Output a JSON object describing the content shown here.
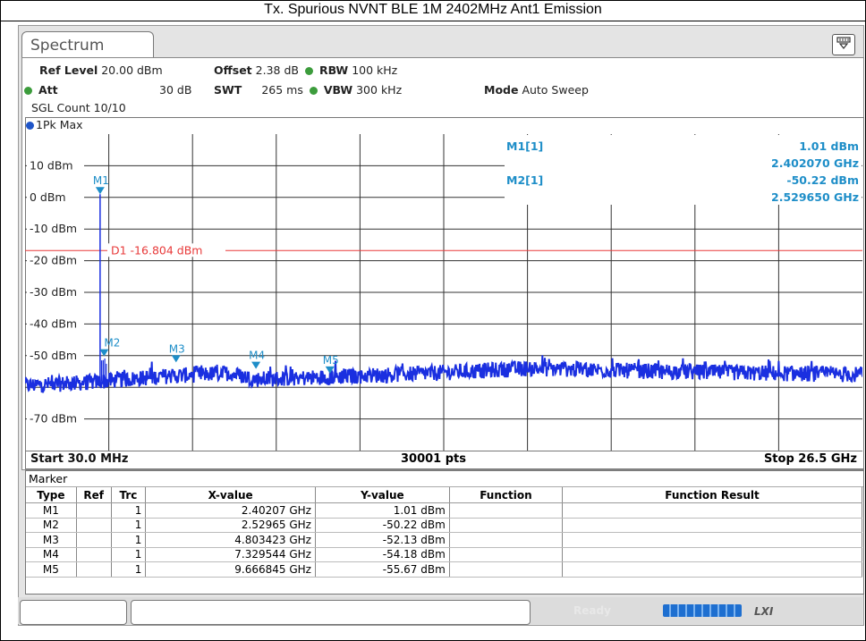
{
  "report_title": "Tx. Spurious NVNT BLE 1M 2402MHz Ant1 Emission",
  "tab_label": "Spectrum",
  "settings": {
    "ref_level_label": "Ref Level",
    "ref_level_value": "20.00 dBm",
    "offset_label": "Offset",
    "offset_value": "2.38 dB",
    "rbw_label": "RBW",
    "rbw_value": "100 kHz",
    "att_label": "Att",
    "att_value": "30 dB",
    "swt_label": "SWT",
    "swt_value": "265 ms",
    "vbw_label": "VBW",
    "vbw_value": "300 kHz",
    "mode_label": "Mode",
    "mode_value": "Auto Sweep",
    "sgl_count": "SGL Count 10/10"
  },
  "trace_label": "1Pk Max",
  "marker_readout": {
    "m1_name": "M1[1]",
    "m1_level": "1.01 dBm",
    "m1_freq": "2.402070 GHz",
    "m2_name": "M2[1]",
    "m2_level": "-50.22 dBm",
    "m2_freq": "2.529650 GHz"
  },
  "display_line_label": "D1 -16.804 dBm",
  "footer": {
    "start": "Start 30.0 MHz",
    "points": "30001 pts",
    "stop": "Stop 26.5 GHz"
  },
  "chart_data": {
    "type": "line",
    "x_unit": "GHz",
    "y_unit": "dBm",
    "xlim": [
      0.03,
      26.5
    ],
    "ylim": [
      -80,
      20
    ],
    "y_ticks": [
      "10 dBm",
      "0 dBm",
      "-10 dBm",
      "-20 dBm",
      "-30 dBm",
      "-40 dBm",
      "-50 dBm",
      "-70 dBm"
    ],
    "y_tick_values": [
      10,
      0,
      -10,
      -20,
      -30,
      -40,
      -50,
      -70
    ],
    "display_line": {
      "label": "D1 -16.804 dBm",
      "value": -16.804,
      "color": "#e83a3a"
    },
    "markers": [
      {
        "name": "M1",
        "x": 2.40207,
        "y": 1.01
      },
      {
        "name": "M2",
        "x": 2.52965,
        "y": -50.22
      },
      {
        "name": "M3",
        "x": 4.803423,
        "y": -52.13
      },
      {
        "name": "M4",
        "x": 7.329544,
        "y": -54.18
      },
      {
        "name": "M5",
        "x": 9.666845,
        "y": -55.67
      }
    ],
    "noise_floor": [
      {
        "x": 0.03,
        "y": -59.5
      },
      {
        "x": 2.0,
        "y": -58.5
      },
      {
        "x": 4.5,
        "y": -56.5
      },
      {
        "x": 6.5,
        "y": -55.5
      },
      {
        "x": 7.3,
        "y": -57.5
      },
      {
        "x": 9.0,
        "y": -57.0
      },
      {
        "x": 13.0,
        "y": -55.5
      },
      {
        "x": 16.0,
        "y": -54.0
      },
      {
        "x": 20.0,
        "y": -55.0
      },
      {
        "x": 23.0,
        "y": -55.5
      },
      {
        "x": 26.5,
        "y": -56.0
      }
    ],
    "trace_color": "#1a2fe0",
    "marker_color": "#1e8ec8"
  },
  "marker_table": {
    "title": "Marker",
    "headers": [
      "Type",
      "Ref",
      "Trc",
      "X-value",
      "Y-value",
      "Function",
      "Function Result"
    ],
    "rows": [
      [
        "M1",
        "",
        "1",
        "2.40207 GHz",
        "1.01 dBm",
        "",
        ""
      ],
      [
        "M2",
        "",
        "1",
        "2.52965 GHz",
        "-50.22 dBm",
        "",
        ""
      ],
      [
        "M3",
        "",
        "1",
        "4.803423 GHz",
        "-52.13 dBm",
        "",
        ""
      ],
      [
        "M4",
        "",
        "1",
        "7.329544 GHz",
        "-54.18 dBm",
        "",
        ""
      ],
      [
        "M5",
        "",
        "1",
        "9.666845 GHz",
        "-55.67 dBm",
        "",
        ""
      ]
    ]
  },
  "status": {
    "ready_text": "Ready"
  }
}
